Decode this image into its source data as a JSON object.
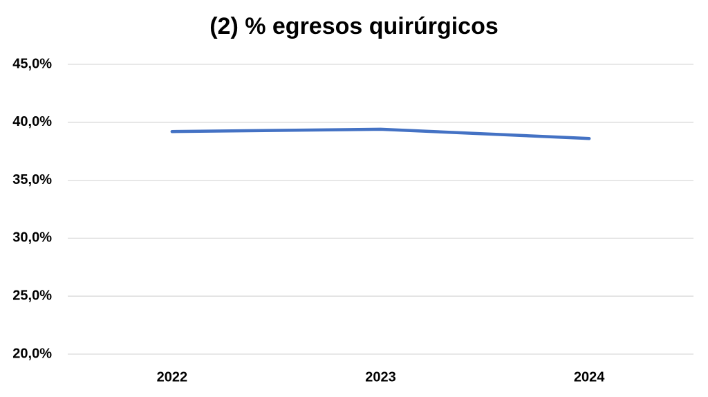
{
  "chart_data": {
    "type": "line",
    "title": "(2) % egresos quirúrgicos",
    "categories": [
      "2022",
      "2023",
      "2024"
    ],
    "series": [
      {
        "name": "% egresos quirúrgicos",
        "color": "#4472c4",
        "values": [
          39.2,
          39.4,
          38.6
        ]
      }
    ],
    "ylim": [
      20,
      45
    ],
    "yticks": [
      {
        "value": 20,
        "label": "20,0%"
      },
      {
        "value": 25,
        "label": "25,0%"
      },
      {
        "value": 30,
        "label": "30,0%"
      },
      {
        "value": 35,
        "label": "35,0%"
      },
      {
        "value": 40,
        "label": "40,0%"
      },
      {
        "value": 45,
        "label": "45,0%"
      }
    ],
    "grid": true,
    "legend": false
  }
}
